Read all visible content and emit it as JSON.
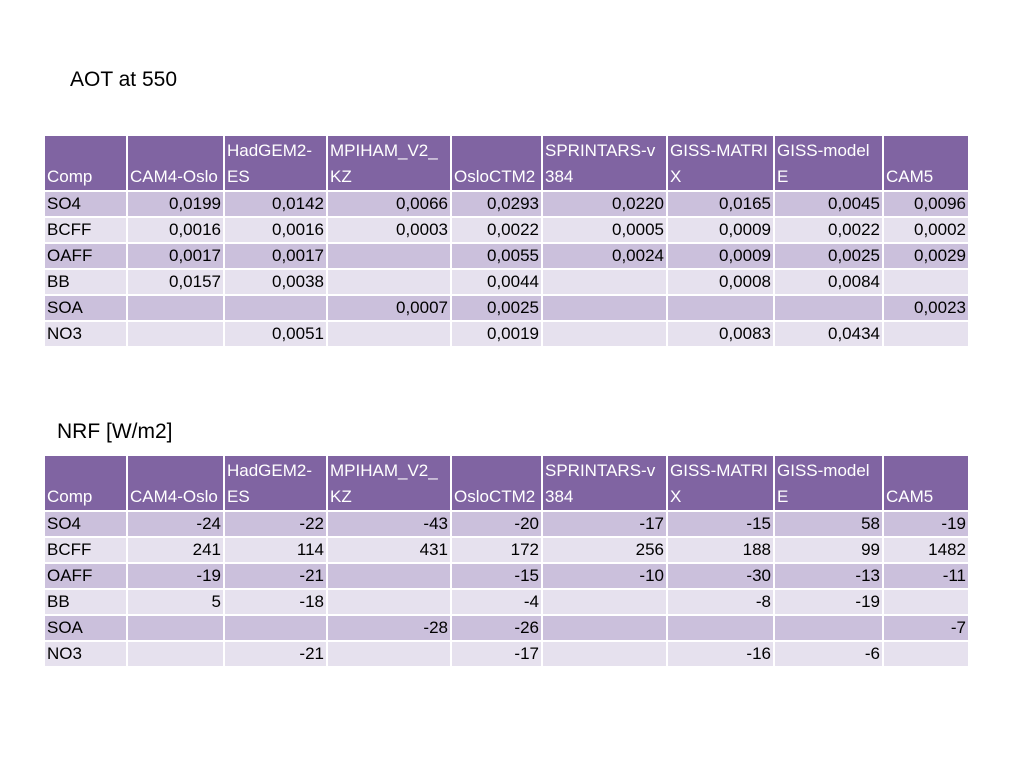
{
  "tables": [
    {
      "title": "AOT at 550",
      "headers": [
        "Comp",
        "CAM4-Oslo",
        "HadGEM2-ES",
        "MPIHAM_V2_KZ",
        "OsloCTM2",
        "SPRINTARS-v384",
        "GISS-MATRIX",
        "GISS-modelE",
        "CAM5"
      ],
      "rows": [
        [
          "SO4",
          "0,0199",
          "0,0142",
          "0,0066",
          "0,0293",
          "0,0220",
          "0,0165",
          "0,0045",
          "0,0096"
        ],
        [
          "BCFF",
          "0,0016",
          "0,0016",
          "0,0003",
          "0,0022",
          "0,0005",
          "0,0009",
          "0,0022",
          "0,0002"
        ],
        [
          "OAFF",
          "0,0017",
          "0,0017",
          "",
          "0,0055",
          "0,0024",
          "0,0009",
          "0,0025",
          "0,0029"
        ],
        [
          "BB",
          "0,0157",
          "0,0038",
          "",
          "0,0044",
          "",
          "0,0008",
          "0,0084",
          ""
        ],
        [
          "SOA",
          "",
          "",
          "0,0007",
          "0,0025",
          "",
          "",
          "",
          "0,0023"
        ],
        [
          "NO3",
          "",
          "0,0051",
          "",
          "0,0019",
          "",
          "0,0083",
          "0,0434",
          ""
        ]
      ]
    },
    {
      "title": "NRF [W/m2]",
      "headers": [
        "Comp",
        "CAM4-Oslo",
        "HadGEM2-ES",
        "MPIHAM_V2_KZ",
        "OsloCTM2",
        "SPRINTARS-v384",
        "GISS-MATRIX",
        "GISS-modelE",
        "CAM5"
      ],
      "rows": [
        [
          "SO4",
          "-24",
          "-22",
          "-43",
          "-20",
          "-17",
          "-15",
          "58",
          "-19"
        ],
        [
          "BCFF",
          "241",
          "114",
          "431",
          "172",
          "256",
          "188",
          "99",
          "1482"
        ],
        [
          "OAFF",
          "-19",
          "-21",
          "",
          "-15",
          "-10",
          "-30",
          "-13",
          "-11"
        ],
        [
          "BB",
          "5",
          "-18",
          "",
          "-4",
          "",
          "-8",
          "-19",
          ""
        ],
        [
          "SOA",
          "",
          "",
          "-28",
          "-26",
          "",
          "",
          "",
          "-7"
        ],
        [
          "NO3",
          "",
          "-21",
          "",
          "-17",
          "",
          "-16",
          "-6",
          ""
        ]
      ]
    }
  ],
  "colors": {
    "header_bg": "#8064a2",
    "row_odd_bg": "#cbc0dc",
    "row_even_bg": "#e6e1ee",
    "header_text": "#ffffff"
  }
}
